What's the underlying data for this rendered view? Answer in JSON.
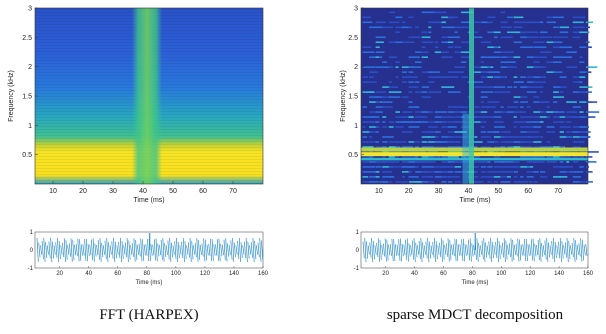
{
  "colors": {
    "spec_low": "#1a2a8f",
    "spec_mid": "#1fa3b8",
    "spec_high": "#f5e81c",
    "waveform": "#2a8cc8"
  },
  "chart_data": [
    {
      "type": "heatmap",
      "caption": "FFT (HARPEX)",
      "xlabel": "Time (ms)",
      "ylabel": "Frequency (kHz)",
      "xlim": [
        4,
        80
      ],
      "ylim": [
        0,
        3
      ],
      "xticks": [
        "10",
        "20",
        "30",
        "40",
        "50",
        "60",
        "70"
      ],
      "yticks": [
        "0.5",
        "1",
        "1.5",
        "2",
        "2.5",
        "3"
      ],
      "transient_time_ms": 41,
      "strong_band_khz": [
        0.35,
        0.75
      ],
      "colormap": "parula"
    },
    {
      "type": "heatmap",
      "caption": "sparse MDCT decomposition",
      "xlabel": "Time (ms)",
      "ylabel": "Frequency (kHz)",
      "xlim": [
        4,
        80
      ],
      "ylim": [
        0,
        3
      ],
      "xticks": [
        "10",
        "20",
        "30",
        "40",
        "50",
        "60",
        "70"
      ],
      "yticks": [
        "0.5",
        "1",
        "1.5",
        "2",
        "2.5",
        "3"
      ],
      "transient_time_ms": 41,
      "strong_lines_khz": [
        0.5,
        0.58
      ],
      "colormap": "parula"
    },
    {
      "type": "line",
      "xlabel": "Time (ms)",
      "xlim": [
        3,
        160
      ],
      "ylim": [
        -1,
        1
      ],
      "xticks": [
        "20",
        "40",
        "60",
        "80",
        "100",
        "120",
        "140",
        "160"
      ],
      "yticks": [
        "-1",
        "0",
        "1"
      ],
      "impulse_x": 82
    },
    {
      "type": "line",
      "xlabel": "Time (ms)",
      "xlim": [
        3,
        160
      ],
      "ylim": [
        -1,
        1
      ],
      "xticks": [
        "20",
        "40",
        "60",
        "80",
        "100",
        "120",
        "140",
        "160"
      ],
      "yticks": [
        "-1",
        "0",
        "1"
      ],
      "impulse_x": 82
    }
  ]
}
